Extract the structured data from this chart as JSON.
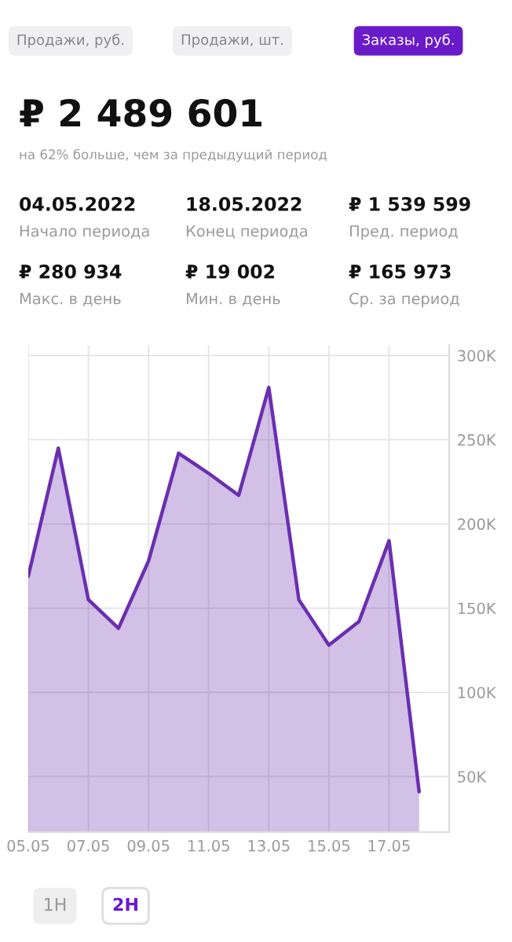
{
  "chart_data": {
    "type": "area",
    "annotations": [
      "Продажи, руб.",
      "Продажи, шт.",
      "Заказы, руб.",
      "₽ 2 489 601",
      "на 62% больше, чем за предыдущий период",
      "04.05.2022",
      "Начало периода",
      "18.05.2022",
      "Конец периода",
      "₽ 1 539 599",
      "Пред. период",
      "₽ 280 934",
      "Макс. в день",
      "₽ 19 002",
      "Мин. в день",
      "₽ 165 973",
      "Ср. за период",
      "1Н",
      "2Н"
    ],
    "x": [
      "2022-05-05",
      "2022-05-06",
      "2022-05-07",
      "2022-05-08",
      "2022-05-09",
      "2022-05-10",
      "2022-05-11",
      "2022-05-12",
      "2022-05-13",
      "2022-05-14",
      "2022-05-15",
      "2022-05-16",
      "2022-05-17",
      "2022-05-18"
    ],
    "series": [
      {
        "color": "#6a2fb0",
        "values": [
          169000,
          245000,
          155000,
          138000,
          178000,
          242000,
          230000,
          217000,
          281000,
          155000,
          128000,
          142000,
          190000,
          41000
        ]
      }
    ],
    "xlim": [
      "2022-05-05",
      "2022-05-19"
    ],
    "xticks": [
      {
        "value": "2022-05-05",
        "label": "05.05"
      },
      {
        "value": "2022-05-07",
        "label": "07.05"
      },
      {
        "value": "2022-05-09",
        "label": "09.05"
      },
      {
        "value": "2022-05-11",
        "label": "11.05"
      },
      {
        "value": "2022-05-13",
        "label": "13.05"
      },
      {
        "value": "2022-05-15",
        "label": "15.05"
      },
      {
        "value": "2022-05-17",
        "label": "17.05"
      }
    ],
    "ylim": [
      17000,
      306000
    ],
    "yticks": [
      {
        "value": 50000,
        "label": "50K"
      },
      {
        "value": 100000,
        "label": "100K"
      },
      {
        "value": 150000,
        "label": "150K"
      },
      {
        "value": 200000,
        "label": "200K"
      },
      {
        "value": 250000,
        "label": "250K"
      },
      {
        "value": 300000,
        "label": "300K"
      }
    ],
    "grid": true,
    "legend": false
  }
}
